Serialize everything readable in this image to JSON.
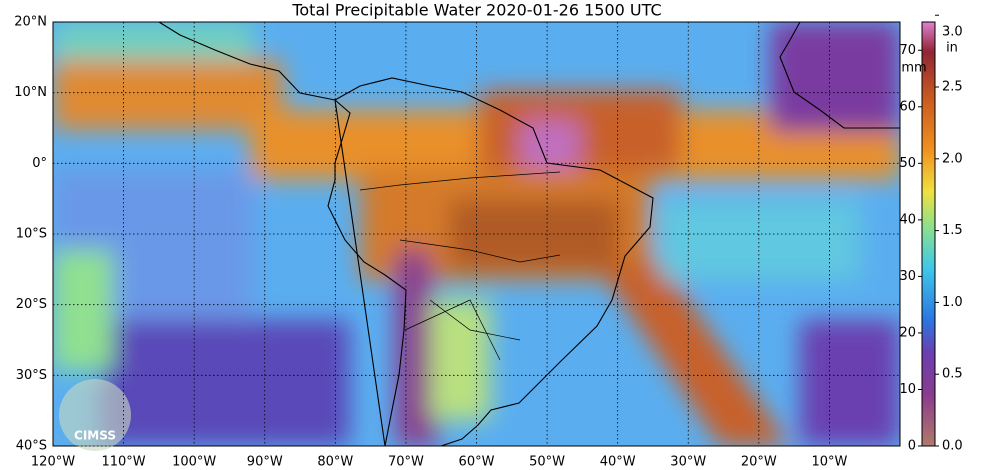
{
  "map": {
    "title": "Total Precipitable Water  2020-01-26 1500 UTC",
    "lonlim": [
      -120,
      0
    ],
    "latlim": [
      -40,
      20
    ],
    "lonticks": [
      {
        "value": -120,
        "label": "120°W"
      },
      {
        "value": -110,
        "label": "110°W"
      },
      {
        "value": -100,
        "label": "100°W"
      },
      {
        "value": -90,
        "label": "90°W"
      },
      {
        "value": -80,
        "label": "80°W"
      },
      {
        "value": -70,
        "label": "70°W"
      },
      {
        "value": -60,
        "label": "60°W"
      },
      {
        "value": -50,
        "label": "50°W"
      },
      {
        "value": -40,
        "label": "40°W"
      },
      {
        "value": -30,
        "label": "30°W"
      },
      {
        "value": -20,
        "label": "20°W"
      },
      {
        "value": -10,
        "label": "10°W"
      }
    ],
    "latticks": [
      {
        "value": 20,
        "label": "20°N"
      },
      {
        "value": 10,
        "label": "10°N"
      },
      {
        "value": 0,
        "label": "0°"
      },
      {
        "value": -10,
        "label": "10°S"
      },
      {
        "value": -20,
        "label": "20°S"
      },
      {
        "value": -30,
        "label": "30°S"
      },
      {
        "value": -40,
        "label": "40°S"
      }
    ],
    "logo": "CIMSS"
  },
  "colorbar": {
    "mm_lim": [
      0,
      75
    ],
    "mm_ticks": [
      0,
      10,
      20,
      30,
      40,
      50,
      60,
      70
    ],
    "mm_label": "mm",
    "in_per_mm": 25.4,
    "in_ticks": [
      {
        "value": 0,
        "label": "0.0"
      },
      {
        "value": 0.5,
        "label": "0.5"
      },
      {
        "value": 1,
        "label": "1.0"
      },
      {
        "value": 1.5,
        "label": "1.5"
      },
      {
        "value": 2,
        "label": "2.0"
      },
      {
        "value": 2.5,
        "label": "2.5"
      },
      {
        "value": 3,
        "label": "3.0"
      }
    ],
    "in_label": "in"
  }
}
